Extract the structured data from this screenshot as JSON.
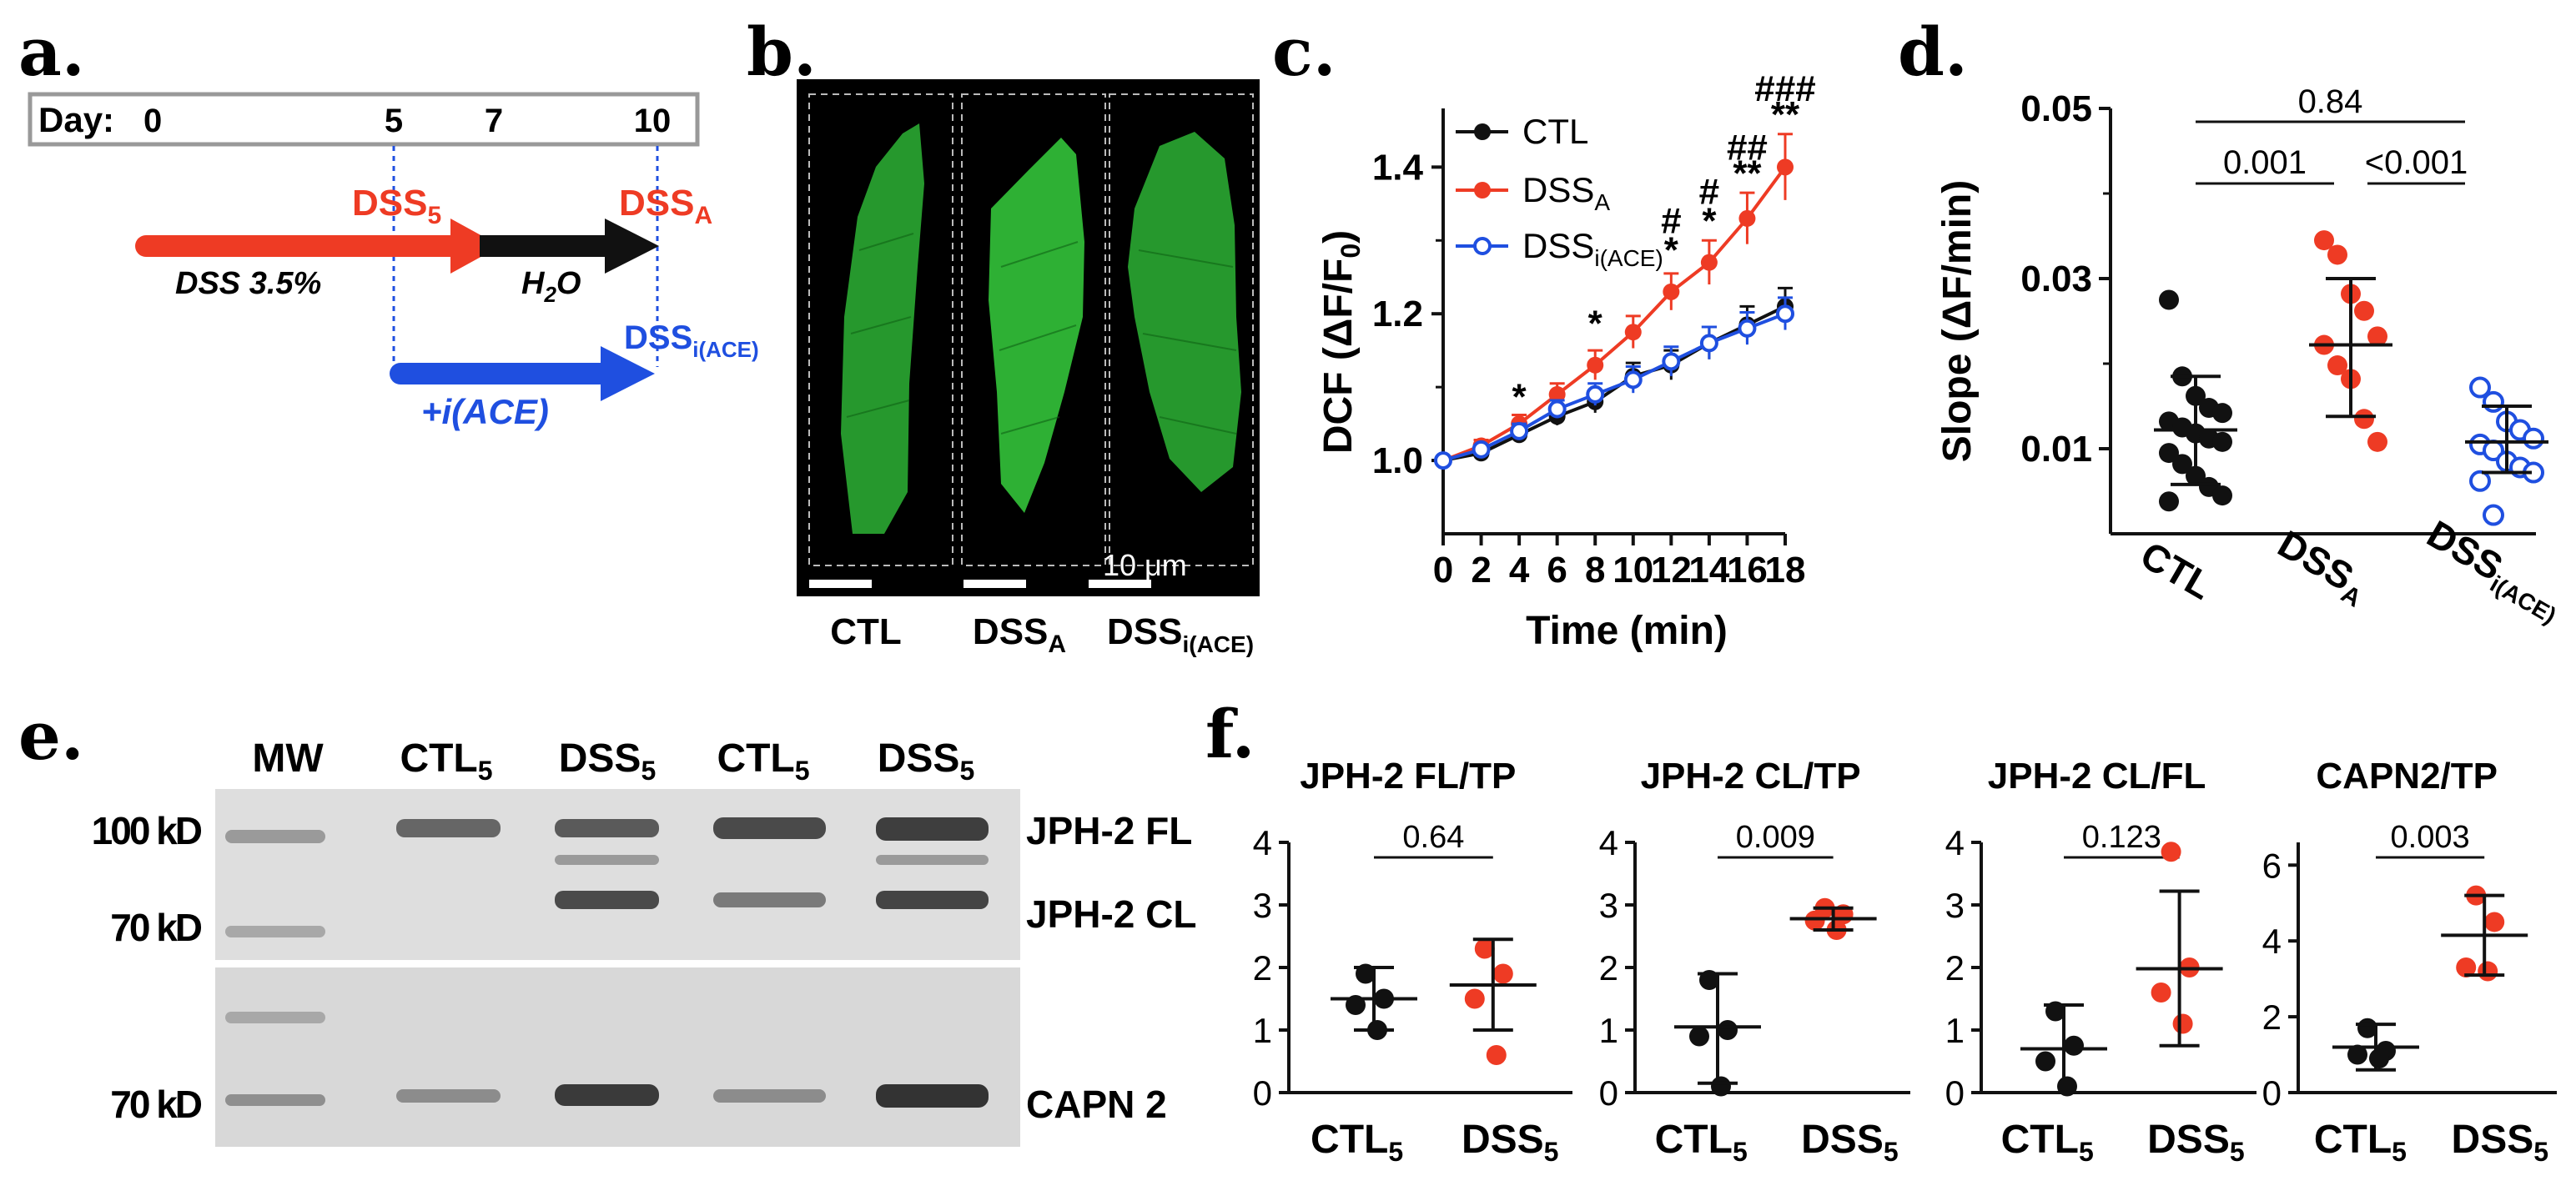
{
  "colors": {
    "black": "#111111",
    "red": "#ee3b24",
    "blue": "#1f4fe0",
    "blot_bg": "#dedede",
    "band": "#3a3a3a",
    "cell_green": "#33c33a",
    "micro_bg": "#000000"
  },
  "panel_a": {
    "letter": "a.",
    "day_label": "Day:",
    "days": [
      "0",
      "5",
      "7",
      "10"
    ],
    "dss5_base": "DSS",
    "dss5_sub": "5",
    "dssA_base": "DSS",
    "dssA_sub": "A",
    "dssi_base": "DSS",
    "dssi_sub": "i(ACE)",
    "dss_text": "DSS 3.5%",
    "h2o_base": "H",
    "h2o_sub": "2",
    "h2o_tail": "O",
    "iace_text": "+i(ACE)"
  },
  "panel_b": {
    "letter": "b.",
    "scale_label": "10 μm",
    "cells": [
      {
        "base": "CTL",
        "sub": ""
      },
      {
        "base": "DSS",
        "sub": "A"
      },
      {
        "base": "DSS",
        "sub": "i(ACE)"
      }
    ]
  },
  "panel_c": {
    "letter": "c.",
    "ylabel_main": "DCF (ΔF/F",
    "ylabel_sub": "0",
    "ylabel_tail": ")",
    "xlabel": "Time (min)",
    "legend": [
      {
        "base": "CTL",
        "sub": ""
      },
      {
        "base": "DSS",
        "sub": "A"
      },
      {
        "base": "DSS",
        "sub": "i(ACE)"
      }
    ]
  },
  "panel_d": {
    "letter": "d.",
    "ylabel": "Slope (ΔF/min)",
    "p_top": "0.84",
    "p_left": "0.001",
    "p_right": "<0.001",
    "categories": [
      {
        "base": "CTL",
        "sub": ""
      },
      {
        "base": "DSS",
        "sub": "A"
      },
      {
        "base": "DSS",
        "sub": "i(ACE)"
      }
    ]
  },
  "panel_e": {
    "letter": "e.",
    "lanes": [
      {
        "base": "MW",
        "sub": ""
      },
      {
        "base": "CTL",
        "sub": "5"
      },
      {
        "base": "DSS",
        "sub": "5"
      },
      {
        "base": "CTL",
        "sub": "5"
      },
      {
        "base": "DSS",
        "sub": "5"
      }
    ],
    "mw_labels": [
      "100 kD",
      "70 kD",
      "70 kD"
    ],
    "band_labels": [
      "JPH-2 FL",
      "JPH-2 CL",
      "CAPN 2"
    ]
  },
  "panel_f": {
    "letter": "f.",
    "group_labels": [
      {
        "base": "CTL",
        "sub": "5"
      },
      {
        "base": "DSS",
        "sub": "5"
      }
    ]
  },
  "chart_data": [
    {
      "panel": "c",
      "type": "line",
      "xlabel": "Time (min)",
      "ylabel": "DCF (ΔF/F0)",
      "x": [
        0,
        2,
        4,
        6,
        8,
        10,
        12,
        14,
        16,
        18
      ],
      "xticks": [
        0,
        2,
        4,
        6,
        8,
        10,
        12,
        14,
        16,
        18
      ],
      "yticks": [
        1.0,
        1.2,
        1.4
      ],
      "xlim": [
        0,
        18
      ],
      "ylim": [
        0.9,
        1.48
      ],
      "legend_position": "top-left",
      "series": [
        {
          "name": "CTL",
          "color": "#111111",
          "marker": "filled",
          "values": [
            1.0,
            1.01,
            1.035,
            1.06,
            1.08,
            1.115,
            1.13,
            1.16,
            1.185,
            1.21
          ],
          "err": [
            0,
            0.005,
            0.01,
            0.012,
            0.015,
            0.018,
            0.02,
            0.022,
            0.025,
            0.025
          ]
        },
        {
          "name": "DSSA",
          "color": "#ee3b24",
          "marker": "filled",
          "values": [
            1.0,
            1.02,
            1.05,
            1.09,
            1.13,
            1.175,
            1.23,
            1.27,
            1.33,
            1.4
          ],
          "err": [
            0,
            0.008,
            0.012,
            0.015,
            0.02,
            0.022,
            0.025,
            0.03,
            0.035,
            0.045
          ]
        },
        {
          "name": "DSSi(ACE)",
          "color": "#1f4fe0",
          "marker": "open",
          "values": [
            1.0,
            1.015,
            1.04,
            1.07,
            1.09,
            1.11,
            1.135,
            1.16,
            1.18,
            1.2
          ],
          "err": [
            0,
            0.006,
            0.01,
            0.012,
            0.015,
            0.018,
            0.02,
            0.022,
            0.022,
            0.022
          ]
        }
      ],
      "annotations": [
        {
          "x": 4,
          "y": 1.07,
          "text": "*"
        },
        {
          "x": 8,
          "y": 1.17,
          "text": "*"
        },
        {
          "x": 12,
          "y": 1.27,
          "text": "*"
        },
        {
          "x": 12,
          "y": 1.31,
          "text": "#"
        },
        {
          "x": 14,
          "y": 1.31,
          "text": "*"
        },
        {
          "x": 14,
          "y": 1.35,
          "text": "#"
        },
        {
          "x": 16,
          "y": 1.375,
          "text": "**"
        },
        {
          "x": 16,
          "y": 1.41,
          "text": "##"
        },
        {
          "x": 18,
          "y": 1.455,
          "text": "**"
        },
        {
          "x": 18,
          "y": 1.49,
          "text": "###"
        }
      ]
    },
    {
      "panel": "d",
      "type": "scatter",
      "ylabel": "Slope (ΔF/min)",
      "categories": [
        "CTL",
        "DSSA",
        "DSSi(ACE)"
      ],
      "yticks": [
        0.01,
        0.03,
        0.05
      ],
      "ylim": [
        0.0,
        0.05
      ],
      "series": [
        {
          "name": "CTL",
          "color": "#111111",
          "marker": "filled",
          "mean": 0.0122,
          "sd_low": 0.0058,
          "sd_high": 0.0185,
          "points": [
            0.0275,
            0.0185,
            0.0162,
            0.0148,
            0.0142,
            0.0132,
            0.0125,
            0.0118,
            0.0112,
            0.0108,
            0.0095,
            0.0082,
            0.0068,
            0.0055,
            0.0045,
            0.0038
          ]
        },
        {
          "name": "DSSA",
          "color": "#ee3b24",
          "marker": "filled",
          "mean": 0.0222,
          "sd_low": 0.0138,
          "sd_high": 0.03,
          "points": [
            0.0345,
            0.0328,
            0.0282,
            0.0262,
            0.0232,
            0.0222,
            0.0198,
            0.0182,
            0.0135,
            0.0108
          ]
        },
        {
          "name": "DSSi(ACE)",
          "color": "#1f4fe0",
          "marker": "open",
          "mean": 0.0108,
          "sd_low": 0.0072,
          "sd_high": 0.015,
          "points": [
            0.0172,
            0.0155,
            0.0132,
            0.0122,
            0.0112,
            0.0105,
            0.0098,
            0.0085,
            0.0078,
            0.0072,
            0.0062,
            0.0022
          ]
        }
      ],
      "comparisons": [
        {
          "groups": [
            "CTL",
            "DSSi(ACE)"
          ],
          "p": "0.84"
        },
        {
          "groups": [
            "CTL",
            "DSSA"
          ],
          "p": "0.001"
        },
        {
          "groups": [
            "DSSA",
            "DSSi(ACE)"
          ],
          "p": "<0.001"
        }
      ]
    },
    {
      "panel": "f1",
      "type": "scatter",
      "title": "JPH-2 FL/TP",
      "categories": [
        "CTL5",
        "DSS5"
      ],
      "yticks": [
        0,
        1,
        2,
        3,
        4
      ],
      "ylim": [
        0,
        4
      ],
      "p": "0.64",
      "series": [
        {
          "name": "CTL5",
          "color": "#111111",
          "points": [
            1.9,
            1.5,
            1.4,
            1.0
          ],
          "mean": 1.5,
          "sd_low": 1.0,
          "sd_high": 2.0
        },
        {
          "name": "DSS5",
          "color": "#ee3b24",
          "points": [
            2.3,
            1.9,
            1.5,
            0.6
          ],
          "mean": 1.72,
          "sd_low": 1.0,
          "sd_high": 2.45
        }
      ]
    },
    {
      "panel": "f2",
      "type": "scatter",
      "title": "JPH-2 CL/TP",
      "categories": [
        "CTL5",
        "DSS5"
      ],
      "yticks": [
        0,
        1,
        2,
        3,
        4
      ],
      "ylim": [
        0,
        4
      ],
      "p": "0.009",
      "series": [
        {
          "name": "CTL5",
          "color": "#111111",
          "points": [
            1.8,
            1.0,
            0.9,
            0.1
          ],
          "mean": 1.05,
          "sd_low": 0.15,
          "sd_high": 1.9
        },
        {
          "name": "DSS5",
          "color": "#ee3b24",
          "points": [
            2.95,
            2.85,
            2.75,
            2.6
          ],
          "mean": 2.78,
          "sd_low": 2.6,
          "sd_high": 2.95
        }
      ]
    },
    {
      "panel": "f3",
      "type": "scatter",
      "title": "JPH-2 CL/FL",
      "categories": [
        "CTL5",
        "DSS5"
      ],
      "yticks": [
        0,
        1,
        2,
        3,
        4
      ],
      "ylim": [
        0,
        4
      ],
      "p": "0.123",
      "series": [
        {
          "name": "CTL5",
          "color": "#111111",
          "points": [
            1.3,
            0.75,
            0.5,
            0.1
          ],
          "mean": 0.7,
          "sd_low": 0.0,
          "sd_high": 1.4
        },
        {
          "name": "DSS5",
          "color": "#ee3b24",
          "points": [
            3.85,
            2.0,
            1.6,
            1.1
          ],
          "mean": 1.98,
          "sd_low": 0.75,
          "sd_high": 3.22
        }
      ]
    },
    {
      "panel": "f4",
      "type": "scatter",
      "title": "CAPN2/TP",
      "categories": [
        "CTL5",
        "DSS5"
      ],
      "yticks": [
        0,
        2,
        4,
        6
      ],
      "ylim": [
        0,
        6.6
      ],
      "p": "0.003",
      "series": [
        {
          "name": "CTL5",
          "color": "#111111",
          "points": [
            1.7,
            1.1,
            1.0,
            0.9
          ],
          "mean": 1.2,
          "sd_low": 0.6,
          "sd_high": 1.8
        },
        {
          "name": "DSS5",
          "color": "#ee3b24",
          "points": [
            5.2,
            4.5,
            3.3,
            3.2
          ],
          "mean": 4.15,
          "sd_low": 3.1,
          "sd_high": 5.2
        }
      ]
    }
  ]
}
